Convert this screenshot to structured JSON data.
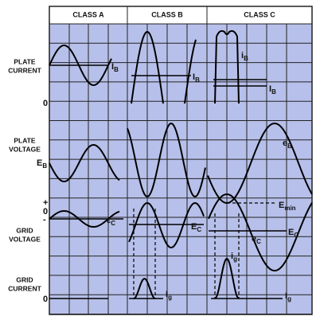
{
  "header": {
    "columns": [
      "CLASS A",
      "CLASS B",
      "CLASS C"
    ]
  },
  "rows": [
    {
      "lines": [
        "PLATE",
        "CURRENT"
      ]
    },
    {
      "lines": [
        "PLATE",
        "VOLTAGE"
      ]
    },
    {
      "lines": [
        "GRID",
        "VOLTAGE"
      ]
    },
    {
      "lines": [
        "GRID",
        "CURRENT"
      ]
    }
  ],
  "axis_labels": [
    {
      "text": "0"
    },
    {
      "text": "E",
      "sub": "B"
    },
    {
      "text": "+"
    },
    {
      "text": "0"
    },
    {
      "text": "-"
    },
    {
      "text": "0"
    }
  ],
  "curve_labels": [
    {
      "text": "I",
      "sub": "B"
    },
    {
      "text": "I",
      "sub": "B"
    },
    {
      "text": "i",
      "sub": "B"
    },
    {
      "text": "I",
      "sub": "B"
    },
    {
      "text": "e",
      "sub": "B"
    },
    {
      "text": "ε",
      "sub": "C"
    },
    {
      "text": "E",
      "sub": "C"
    },
    {
      "text": "E",
      "sub": "min"
    },
    {
      "text": "e",
      "sub": "C"
    },
    {
      "text": "E",
      "sub": "C"
    },
    {
      "text": "i",
      "sub": "g"
    },
    {
      "text": "I",
      "sub": "g"
    },
    {
      "text": "I",
      "sub": "g"
    }
  ]
}
